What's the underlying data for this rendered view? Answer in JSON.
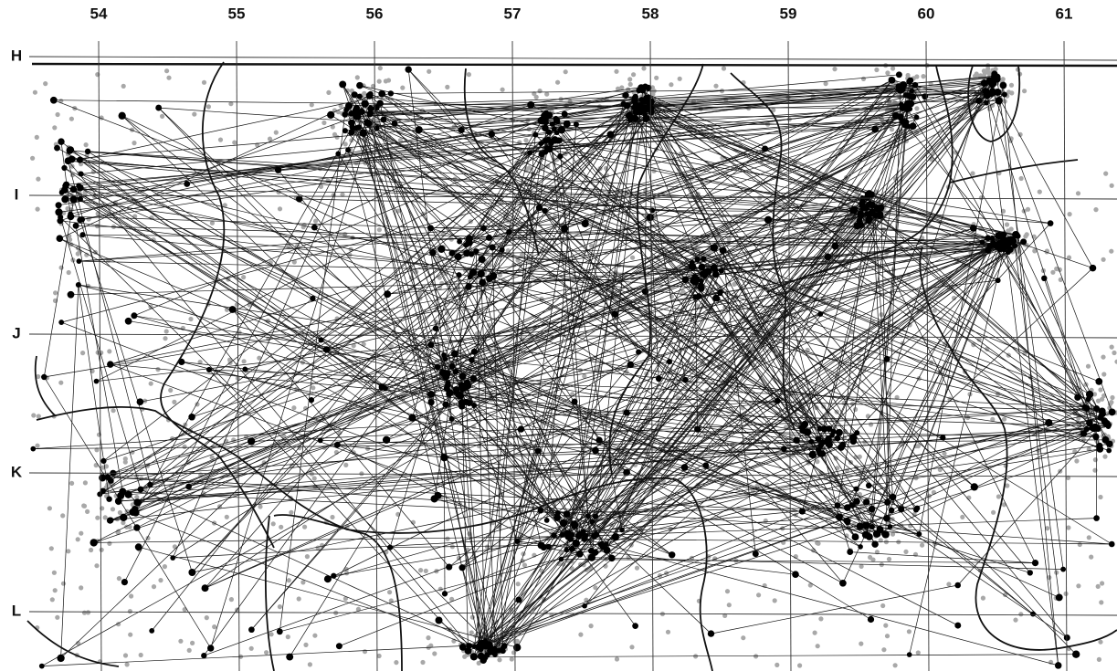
{
  "grid": {
    "columns": [
      "54",
      "55",
      "56",
      "57",
      "58",
      "59",
      "60",
      "61"
    ],
    "rows": [
      "H",
      "I",
      "J",
      "K",
      "L"
    ]
  }
}
